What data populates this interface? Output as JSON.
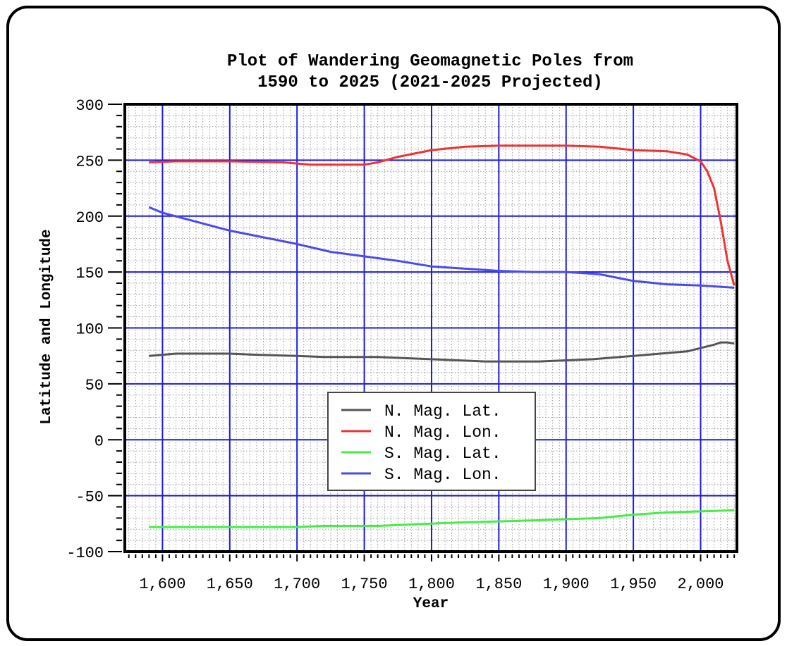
{
  "chart_data": {
    "type": "line",
    "title_lines": [
      "Plot of Wandering Geomagnetic Poles from",
      "1590 to 2025 (2021-2025 Projected)"
    ],
    "xlabel": "Year",
    "ylabel": "Latitude and Longitude",
    "xlim": [
      1572,
      2027
    ],
    "ylim": [
      -100,
      300
    ],
    "x_ticks": [
      1600,
      1650,
      1700,
      1750,
      1800,
      1850,
      1900,
      1950,
      2000
    ],
    "x_tick_labels": [
      "1,600",
      "1,650",
      "1,700",
      "1,750",
      "1,800",
      "1,850",
      "1,900",
      "1,950",
      "2,000"
    ],
    "y_ticks": [
      -100,
      -50,
      0,
      50,
      100,
      150,
      200,
      250,
      300
    ],
    "y_tick_labels": [
      "-100",
      "-50",
      "0",
      "50",
      "100",
      "150",
      "200",
      "250",
      "300"
    ],
    "grid": "major solid blue, minor dotted gray",
    "legend_position": "lower-center",
    "series": [
      {
        "name": "N. Mag. Lat.",
        "color": "#555555",
        "x": [
          1590,
          1600,
          1610,
          1625,
          1650,
          1670,
          1700,
          1720,
          1740,
          1760,
          1780,
          1800,
          1820,
          1840,
          1860,
          1880,
          1900,
          1920,
          1940,
          1960,
          1980,
          1990,
          2000,
          2010,
          2015,
          2020,
          2025
        ],
        "y": [
          75,
          76,
          77,
          77,
          77,
          76,
          75,
          74,
          74,
          74,
          73,
          72,
          71,
          70,
          70,
          70,
          71,
          72,
          74,
          76,
          78,
          79,
          82,
          85,
          87,
          87,
          86
        ]
      },
      {
        "name": "N. Mag. Lon.",
        "color": "#ee3333",
        "x": [
          1590,
          1610,
          1650,
          1690,
          1710,
          1730,
          1750,
          1760,
          1775,
          1800,
          1825,
          1850,
          1875,
          1900,
          1925,
          1950,
          1975,
          1990,
          2000,
          2005,
          2010,
          2015,
          2020,
          2025
        ],
        "y": [
          248,
          249,
          249,
          248,
          246,
          246,
          246,
          248,
          253,
          259,
          262,
          263,
          263,
          263,
          262,
          259,
          258,
          255,
          249,
          240,
          225,
          195,
          160,
          138
        ]
      },
      {
        "name": "S. Mag. Lat.",
        "color": "#44ee44",
        "x": [
          1590,
          1650,
          1700,
          1720,
          1740,
          1760,
          1780,
          1800,
          1820,
          1850,
          1880,
          1900,
          1925,
          1950,
          1975,
          2000,
          2025
        ],
        "y": [
          -78,
          -78,
          -78,
          -77,
          -77,
          -77,
          -76,
          -75,
          -74,
          -73,
          -72,
          -71,
          -70,
          -67,
          -65,
          -64,
          -63
        ]
      },
      {
        "name": "S. Mag. Lon.",
        "color": "#4a4aee",
        "x": [
          1590,
          1600,
          1625,
          1650,
          1675,
          1700,
          1725,
          1750,
          1775,
          1800,
          1825,
          1850,
          1875,
          1900,
          1925,
          1950,
          1975,
          2000,
          2025
        ],
        "y": [
          208,
          203,
          195,
          187,
          181,
          175,
          168,
          164,
          160,
          155,
          153,
          151,
          150,
          150,
          148,
          142,
          139,
          138,
          136
        ]
      }
    ]
  }
}
